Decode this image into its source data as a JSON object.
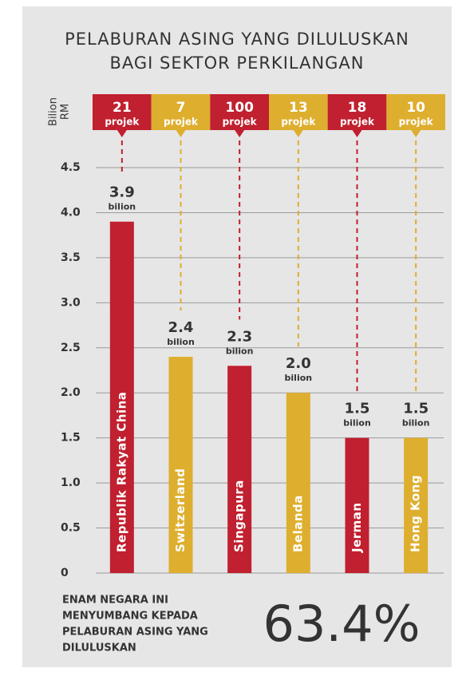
{
  "chart_data": {
    "type": "bar",
    "title": [
      "PELABURAN ASING YANG DILULUSKAN",
      "BAGI SEKTOR PERKILANGAN"
    ],
    "y_label": [
      "Bilion",
      "RM"
    ],
    "categories": [
      "Republik Rakyat China",
      "Switzerland",
      "Singapura",
      "Belanda",
      "Jerman",
      "Hong Kong"
    ],
    "values": [
      3.9,
      2.4,
      2.3,
      2.0,
      1.5,
      1.5
    ],
    "value_labels": [
      "3.9",
      "2.4",
      "2.3",
      "2.0",
      "1.5",
      "1.5"
    ],
    "value_unit": "bilion",
    "projects": [
      21,
      7,
      100,
      13,
      18,
      10
    ],
    "project_unit": "projek",
    "colors": [
      "#c0202f",
      "#deae2e",
      "#c0202f",
      "#deae2e",
      "#c0202f",
      "#deae2e"
    ],
    "ylim": [
      0,
      4.5
    ],
    "yticks": [
      0,
      0.5,
      {
        "value": 1,
        "label": "1.0"
      },
      1.5,
      {
        "value": 2,
        "label": "2.0"
      },
      2.5,
      {
        "value": 3,
        "label": "3.0"
      },
      3.5,
      {
        "value": 4,
        "label": "4.0"
      },
      4.5
    ],
    "grid": true,
    "note": [
      "ENAM NEGARA INI",
      "MENYUMBANG KEPADA",
      "PELABURAN ASING YANG",
      "DILULUSKAN"
    ],
    "highlight": {
      "value": 63.4,
      "label": "63.4%"
    }
  }
}
